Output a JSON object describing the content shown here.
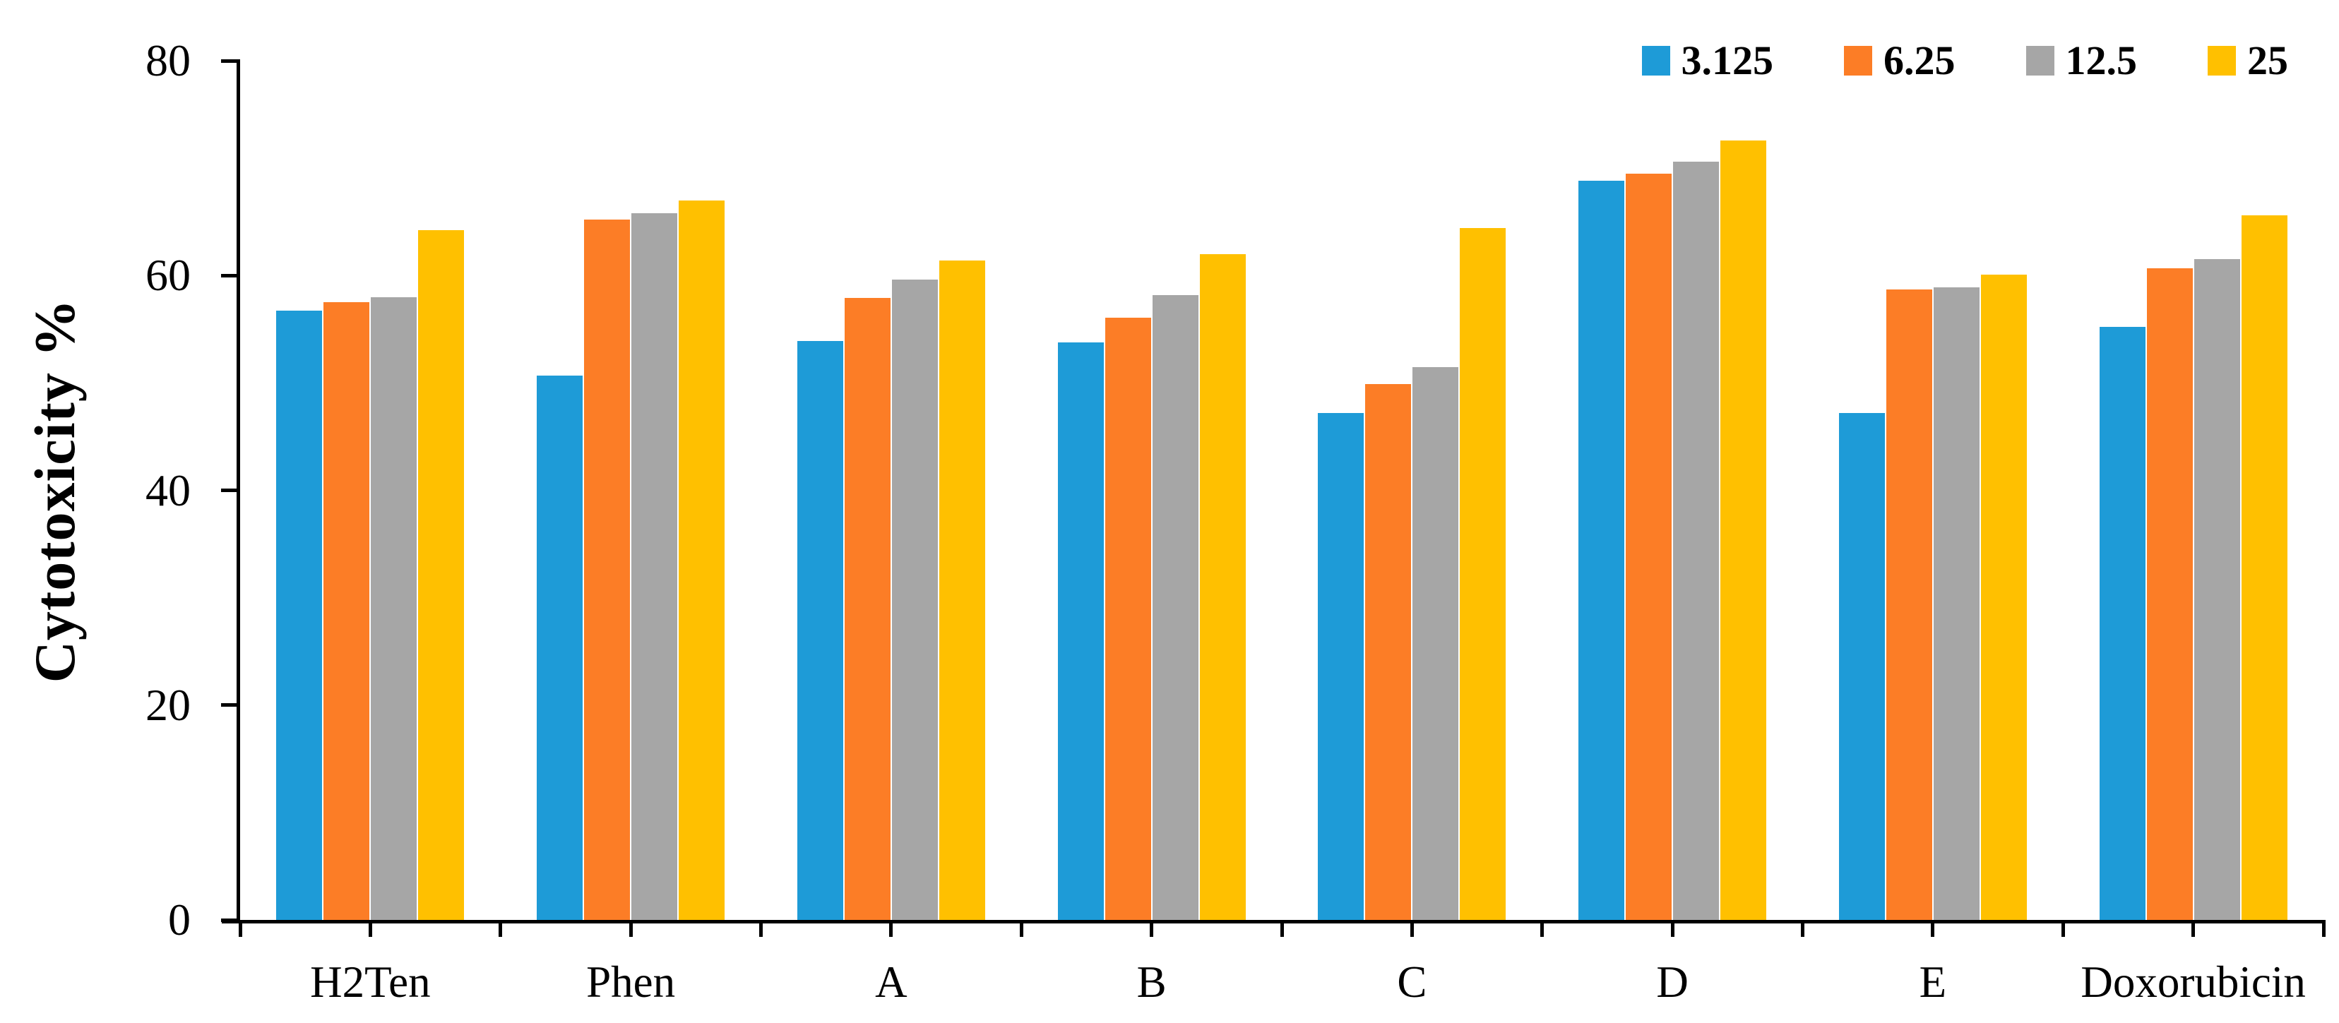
{
  "chart_data": {
    "type": "bar",
    "title": "",
    "xlabel": "",
    "ylabel": "Cytotoxicity %",
    "ylim": [
      0,
      80
    ],
    "yticks": [
      0,
      20,
      40,
      60,
      80
    ],
    "grid": false,
    "legend_position": "top-right",
    "categories": [
      "H2Ten",
      "Phen",
      "A",
      "B",
      "C",
      "D",
      "E",
      "Doxorubicin"
    ],
    "series": [
      {
        "name": "3.125",
        "color": "#1E9BD7",
        "values": [
          56.7,
          50.7,
          53.9,
          53.8,
          47.2,
          68.8,
          47.2,
          55.2
        ]
      },
      {
        "name": "6.25",
        "color": "#FC7D26",
        "values": [
          57.5,
          65.2,
          57.9,
          56.1,
          49.9,
          69.5,
          58.7,
          60.7
        ]
      },
      {
        "name": "12.5",
        "color": "#A6A6A6",
        "values": [
          58.0,
          65.8,
          59.6,
          58.2,
          51.5,
          70.6,
          58.9,
          61.5
        ]
      },
      {
        "name": "25",
        "color": "#FFC000",
        "values": [
          64.2,
          67.0,
          61.4,
          62.0,
          64.4,
          72.6,
          60.1,
          65.6
        ]
      }
    ]
  }
}
